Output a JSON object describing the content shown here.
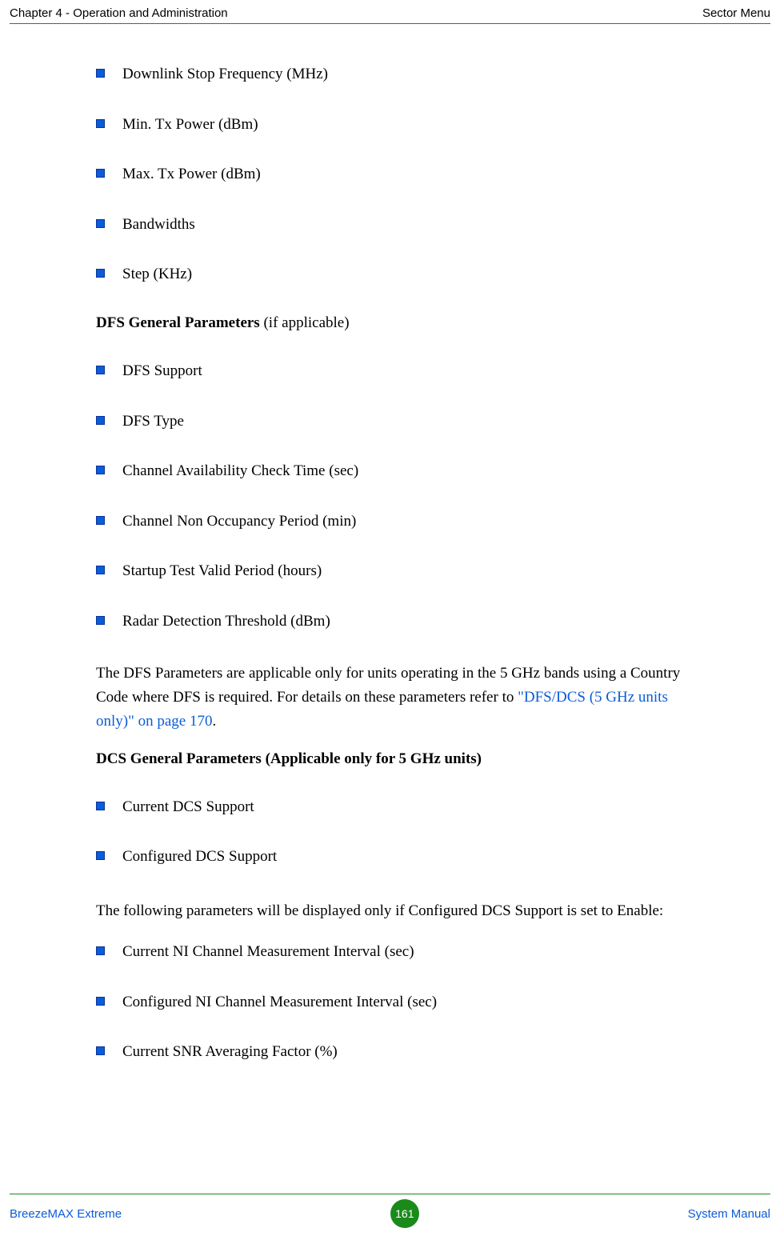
{
  "header": {
    "left": "Chapter 4 - Operation and Administration",
    "right": "Sector Menu"
  },
  "bullets_group1": [
    "Downlink Stop Frequency (MHz)",
    "Min. Tx Power (dBm)",
    "Max. Tx Power (dBm)",
    "Bandwidths",
    "Step (KHz)"
  ],
  "heading_dfs_bold": "DFS General Parameters",
  "heading_dfs_rest": " (if applicable)",
  "bullets_group2": [
    "DFS Support",
    "DFS Type",
    "Channel Availability Check Time (sec)",
    "Channel Non Occupancy Period (min)",
    "Startup Test Valid Period (hours)",
    "Radar Detection Threshold (dBm)"
  ],
  "para_dfs_pre": "The DFS Parameters are applicable only for units operating in the 5 GHz bands using a Country Code where DFS is required. For details on these parameters refer to ",
  "para_dfs_link": "\"DFS/DCS (5 GHz units only)\" on page 170",
  "para_dfs_post": ".",
  "heading_dcs": "DCS General Parameters (Applicable only for 5 GHz units)",
  "bullets_group3": [
    "Current DCS Support",
    "Configured DCS Support"
  ],
  "para_dcs": "The following parameters will be displayed only if Configured DCS Support is set to Enable:",
  "bullets_group4": [
    "Current NI Channel Measurement Interval (sec)",
    "Configured NI Channel Measurement Interval (sec)",
    "Current SNR Averaging Factor (%)"
  ],
  "footer": {
    "left": "BreezeMAX Extreme",
    "page": "161",
    "right": "System Manual"
  },
  "colors": {
    "accent_green": "#1a8a1a",
    "link_blue": "#0b5cd8",
    "bullet_fill": "#0b5cd8",
    "bullet_border": "#07349a"
  }
}
